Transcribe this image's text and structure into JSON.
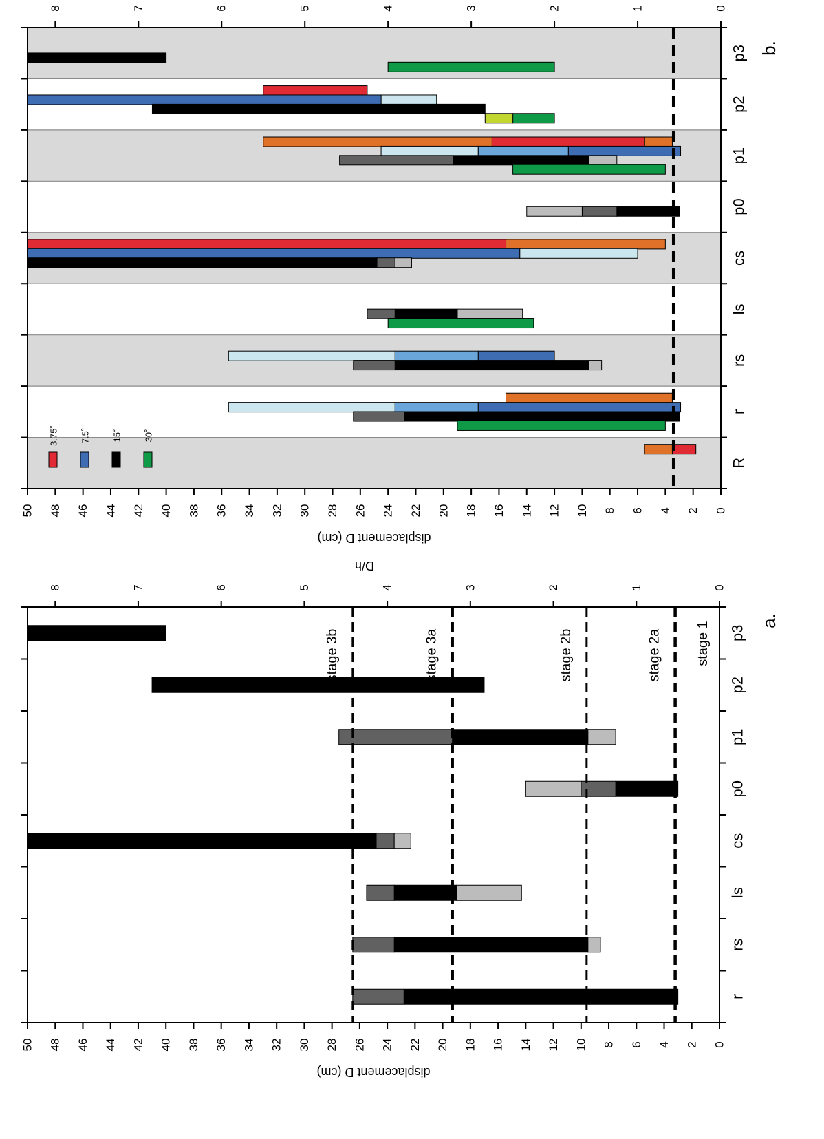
{
  "chart_data": [
    {
      "panel": "a.",
      "type": "bar",
      "orientation": "horizontal-ranges",
      "xlabel": "displacement D (cm)",
      "x2label": "D/h",
      "xlim": [
        0,
        50
      ],
      "x_ticks": [
        0,
        2,
        4,
        6,
        8,
        10,
        12,
        14,
        16,
        18,
        20,
        22,
        24,
        26,
        28,
        30,
        32,
        34,
        36,
        38,
        40,
        42,
        44,
        46,
        48,
        50
      ],
      "x2_ticks": [
        "0",
        "1",
        "2",
        "3",
        "4",
        "5",
        "6",
        "7",
        "8"
      ],
      "categories": [
        "r",
        "rs",
        "ls",
        "cs",
        "p0",
        "p1",
        "p2",
        "p3"
      ],
      "series": [
        {
          "color": "#000000",
          "segments": [
            {
              "category": "r",
              "from": 3.0,
              "to": 22.8
            },
            {
              "category": "rs",
              "from": 9.5,
              "to": 23.5
            },
            {
              "category": "ls",
              "from": 19.0,
              "to": 23.5
            },
            {
              "category": "cs",
              "from": 24.8,
              "to": 50.0
            },
            {
              "category": "p0",
              "from": 3.0,
              "to": 7.5
            },
            {
              "category": "p1",
              "from": 9.5,
              "to": 19.3
            },
            {
              "category": "p2",
              "from": 17.0,
              "to": 41.0
            },
            {
              "category": "p3",
              "from": 40.0,
              "to": 50.0
            }
          ]
        },
        {
          "color": "#616161",
          "segments": [
            {
              "category": "r",
              "from": 22.8,
              "to": 26.5
            },
            {
              "category": "rs",
              "from": 23.5,
              "to": 26.5
            },
            {
              "category": "ls",
              "from": 23.5,
              "to": 25.5
            },
            {
              "category": "cs",
              "from": 23.5,
              "to": 24.8
            },
            {
              "category": "p0",
              "from": 7.5,
              "to": 10.0
            },
            {
              "category": "p1",
              "from": 19.3,
              "to": 27.5
            }
          ]
        },
        {
          "color": "#bcbcbc",
          "segments": [
            {
              "category": "rs",
              "from": 8.6,
              "to": 9.5
            },
            {
              "category": "ls",
              "from": 14.3,
              "to": 19.0
            },
            {
              "category": "cs",
              "from": 22.3,
              "to": 23.5
            },
            {
              "category": "p0",
              "from": 10.0,
              "to": 14.0
            },
            {
              "category": "p1",
              "from": 7.5,
              "to": 9.5
            }
          ]
        }
      ],
      "annotations": [
        {
          "label": "stage 1",
          "value": null
        },
        {
          "label": "stage 2a",
          "value": 3.2
        },
        {
          "label": "stage 2b",
          "value": 9.6
        },
        {
          "label": "stage 3a",
          "value": 19.3
        },
        {
          "label": "stage 3b",
          "value": 26.5
        }
      ]
    },
    {
      "panel": "b.",
      "type": "bar",
      "orientation": "horizontal-ranges",
      "xlabel": "displacement D (cm)",
      "x2label": "D/h",
      "xlim": [
        0,
        50
      ],
      "x_ticks": [
        0,
        2,
        4,
        6,
        8,
        10,
        12,
        14,
        16,
        18,
        20,
        22,
        24,
        26,
        28,
        30,
        32,
        34,
        36,
        38,
        40,
        42,
        44,
        46,
        48,
        50
      ],
      "x2_ticks": [
        "0",
        "1",
        "2",
        "3",
        "4",
        "5",
        "6",
        "7",
        "8"
      ],
      "categories": [
        "R",
        "r",
        "rs",
        "ls",
        "cs",
        "p0",
        "p1",
        "p2",
        "p3"
      ],
      "shaded_categories": [
        "R",
        "rs",
        "cs",
        "p1",
        "p3"
      ],
      "dashed_line_value": 3.4,
      "legend": [
        {
          "label": "3.75˚",
          "color": "#e02b35"
        },
        {
          "label": "7.5˚",
          "color": "#3f6db4"
        },
        {
          "label": "15˚",
          "color": "#000000"
        },
        {
          "label": "30˚",
          "color": "#0e9a47"
        }
      ],
      "bars": [
        {
          "category": "R",
          "row": 0,
          "segments": [
            {
              "from": 1.8,
              "to": 3.5,
              "color": "#e02b35"
            },
            {
              "from": 3.5,
              "to": 5.5,
              "color": "#e07128"
            }
          ]
        },
        {
          "category": "r",
          "row": 0,
          "segments": [
            {
              "from": 3.5,
              "to": 15.5,
              "color": "#e07128"
            }
          ]
        },
        {
          "category": "r",
          "row": 1,
          "segments": [
            {
              "from": 2.9,
              "to": 17.5,
              "color": "#3f6db4"
            },
            {
              "from": 17.5,
              "to": 23.5,
              "color": "#6aa6da"
            },
            {
              "from": 23.5,
              "to": 35.5,
              "color": "#cbe6ee"
            }
          ]
        },
        {
          "category": "r",
          "row": 2,
          "segments": [
            {
              "from": 3.0,
              "to": 22.8,
              "color": "#000000"
            },
            {
              "from": 22.8,
              "to": 26.5,
              "color": "#616161"
            }
          ]
        },
        {
          "category": "r",
          "row": 3,
          "segments": [
            {
              "from": 4.0,
              "to": 19.0,
              "color": "#0e9a47"
            }
          ]
        },
        {
          "category": "rs",
          "row": 1,
          "segments": [
            {
              "from": 12.0,
              "to": 17.5,
              "color": "#3f6db4"
            },
            {
              "from": 17.5,
              "to": 23.5,
              "color": "#6aa6da"
            },
            {
              "from": 23.5,
              "to": 35.5,
              "color": "#cbe6ee"
            }
          ]
        },
        {
          "category": "rs",
          "row": 2,
          "segments": [
            {
              "from": 8.6,
              "to": 9.5,
              "color": "#bcbcbc"
            },
            {
              "from": 9.5,
              "to": 23.5,
              "color": "#000000"
            },
            {
              "from": 23.5,
              "to": 26.5,
              "color": "#616161"
            }
          ]
        },
        {
          "category": "ls",
          "row": 2,
          "segments": [
            {
              "from": 14.3,
              "to": 19.0,
              "color": "#bcbcbc"
            },
            {
              "from": 19.0,
              "to": 23.5,
              "color": "#000000"
            },
            {
              "from": 23.5,
              "to": 25.5,
              "color": "#616161"
            }
          ]
        },
        {
          "category": "ls",
          "row": 3,
          "segments": [
            {
              "from": 13.5,
              "to": 24.0,
              "color": "#0e9a47"
            }
          ]
        },
        {
          "category": "cs",
          "row": 0,
          "segments": [
            {
              "from": 4.0,
              "to": 15.5,
              "color": "#e07128"
            },
            {
              "from": 15.5,
              "to": 50.0,
              "color": "#e02b35"
            }
          ]
        },
        {
          "category": "cs",
          "row": 1,
          "segments": [
            {
              "from": 6.0,
              "to": 14.5,
              "color": "#cbe6ee"
            },
            {
              "from": 14.5,
              "to": 50.0,
              "color": "#3f6db4"
            }
          ]
        },
        {
          "category": "cs",
          "row": 2,
          "segments": [
            {
              "from": 22.3,
              "to": 23.5,
              "color": "#bcbcbc"
            },
            {
              "from": 23.5,
              "to": 24.8,
              "color": "#616161"
            },
            {
              "from": 24.8,
              "to": 50.0,
              "color": "#000000"
            }
          ]
        },
        {
          "category": "p0",
          "row": 2,
          "segments": [
            {
              "from": 3.0,
              "to": 7.5,
              "color": "#000000"
            },
            {
              "from": 7.5,
              "to": 10.0,
              "color": "#616161"
            },
            {
              "from": 10.0,
              "to": 14.0,
              "color": "#bcbcbc"
            }
          ]
        },
        {
          "category": "p1",
          "row": 0,
          "segments": [
            {
              "from": 3.5,
              "to": 5.5,
              "color": "#e07128"
            },
            {
              "from": 5.5,
              "to": 16.5,
              "color": "#e02b35"
            },
            {
              "from": 16.5,
              "to": 33.0,
              "color": "#e07128"
            }
          ]
        },
        {
          "category": "p1",
          "row": 1,
          "segments": [
            {
              "from": 2.9,
              "to": 11.0,
              "color": "#3f6db4"
            },
            {
              "from": 11.0,
              "to": 17.5,
              "color": "#6aa6da"
            },
            {
              "from": 17.5,
              "to": 24.5,
              "color": "#cbe6ee"
            }
          ]
        },
        {
          "category": "p1",
          "row": 2,
          "segments": [
            {
              "from": 7.5,
              "to": 9.5,
              "color": "#bcbcbc"
            },
            {
              "from": 9.5,
              "to": 19.3,
              "color": "#000000"
            },
            {
              "from": 19.3,
              "to": 27.5,
              "color": "#616161"
            }
          ]
        },
        {
          "category": "p1",
          "row": 3,
          "segments": [
            {
              "from": 4.0,
              "to": 15.0,
              "color": "#0e9a47"
            }
          ]
        },
        {
          "category": "p2",
          "row": 0,
          "segments": [
            {
              "from": 25.5,
              "to": 33.0,
              "color": "#e02b35"
            }
          ]
        },
        {
          "category": "p2",
          "row": 1,
          "segments": [
            {
              "from": 20.5,
              "to": 24.5,
              "color": "#cbe6ee"
            },
            {
              "from": 24.5,
              "to": 50.0,
              "color": "#3f6db4"
            }
          ]
        },
        {
          "category": "p2",
          "row": 2,
          "segments": [
            {
              "from": 17.0,
              "to": 41.0,
              "color": "#000000"
            }
          ]
        },
        {
          "category": "p2",
          "row": 3,
          "segments": [
            {
              "from": 12.0,
              "to": 15.0,
              "color": "#0e9a47"
            },
            {
              "from": 15.0,
              "to": 17.0,
              "color": "#c2d630"
            }
          ]
        },
        {
          "category": "p3",
          "row": 2,
          "segments": [
            {
              "from": 40.0,
              "to": 50.0,
              "color": "#000000"
            }
          ]
        },
        {
          "category": "p3",
          "row": 3,
          "segments": [
            {
              "from": 12.0,
              "to": 24.0,
              "color": "#0e9a47"
            }
          ]
        }
      ]
    }
  ]
}
